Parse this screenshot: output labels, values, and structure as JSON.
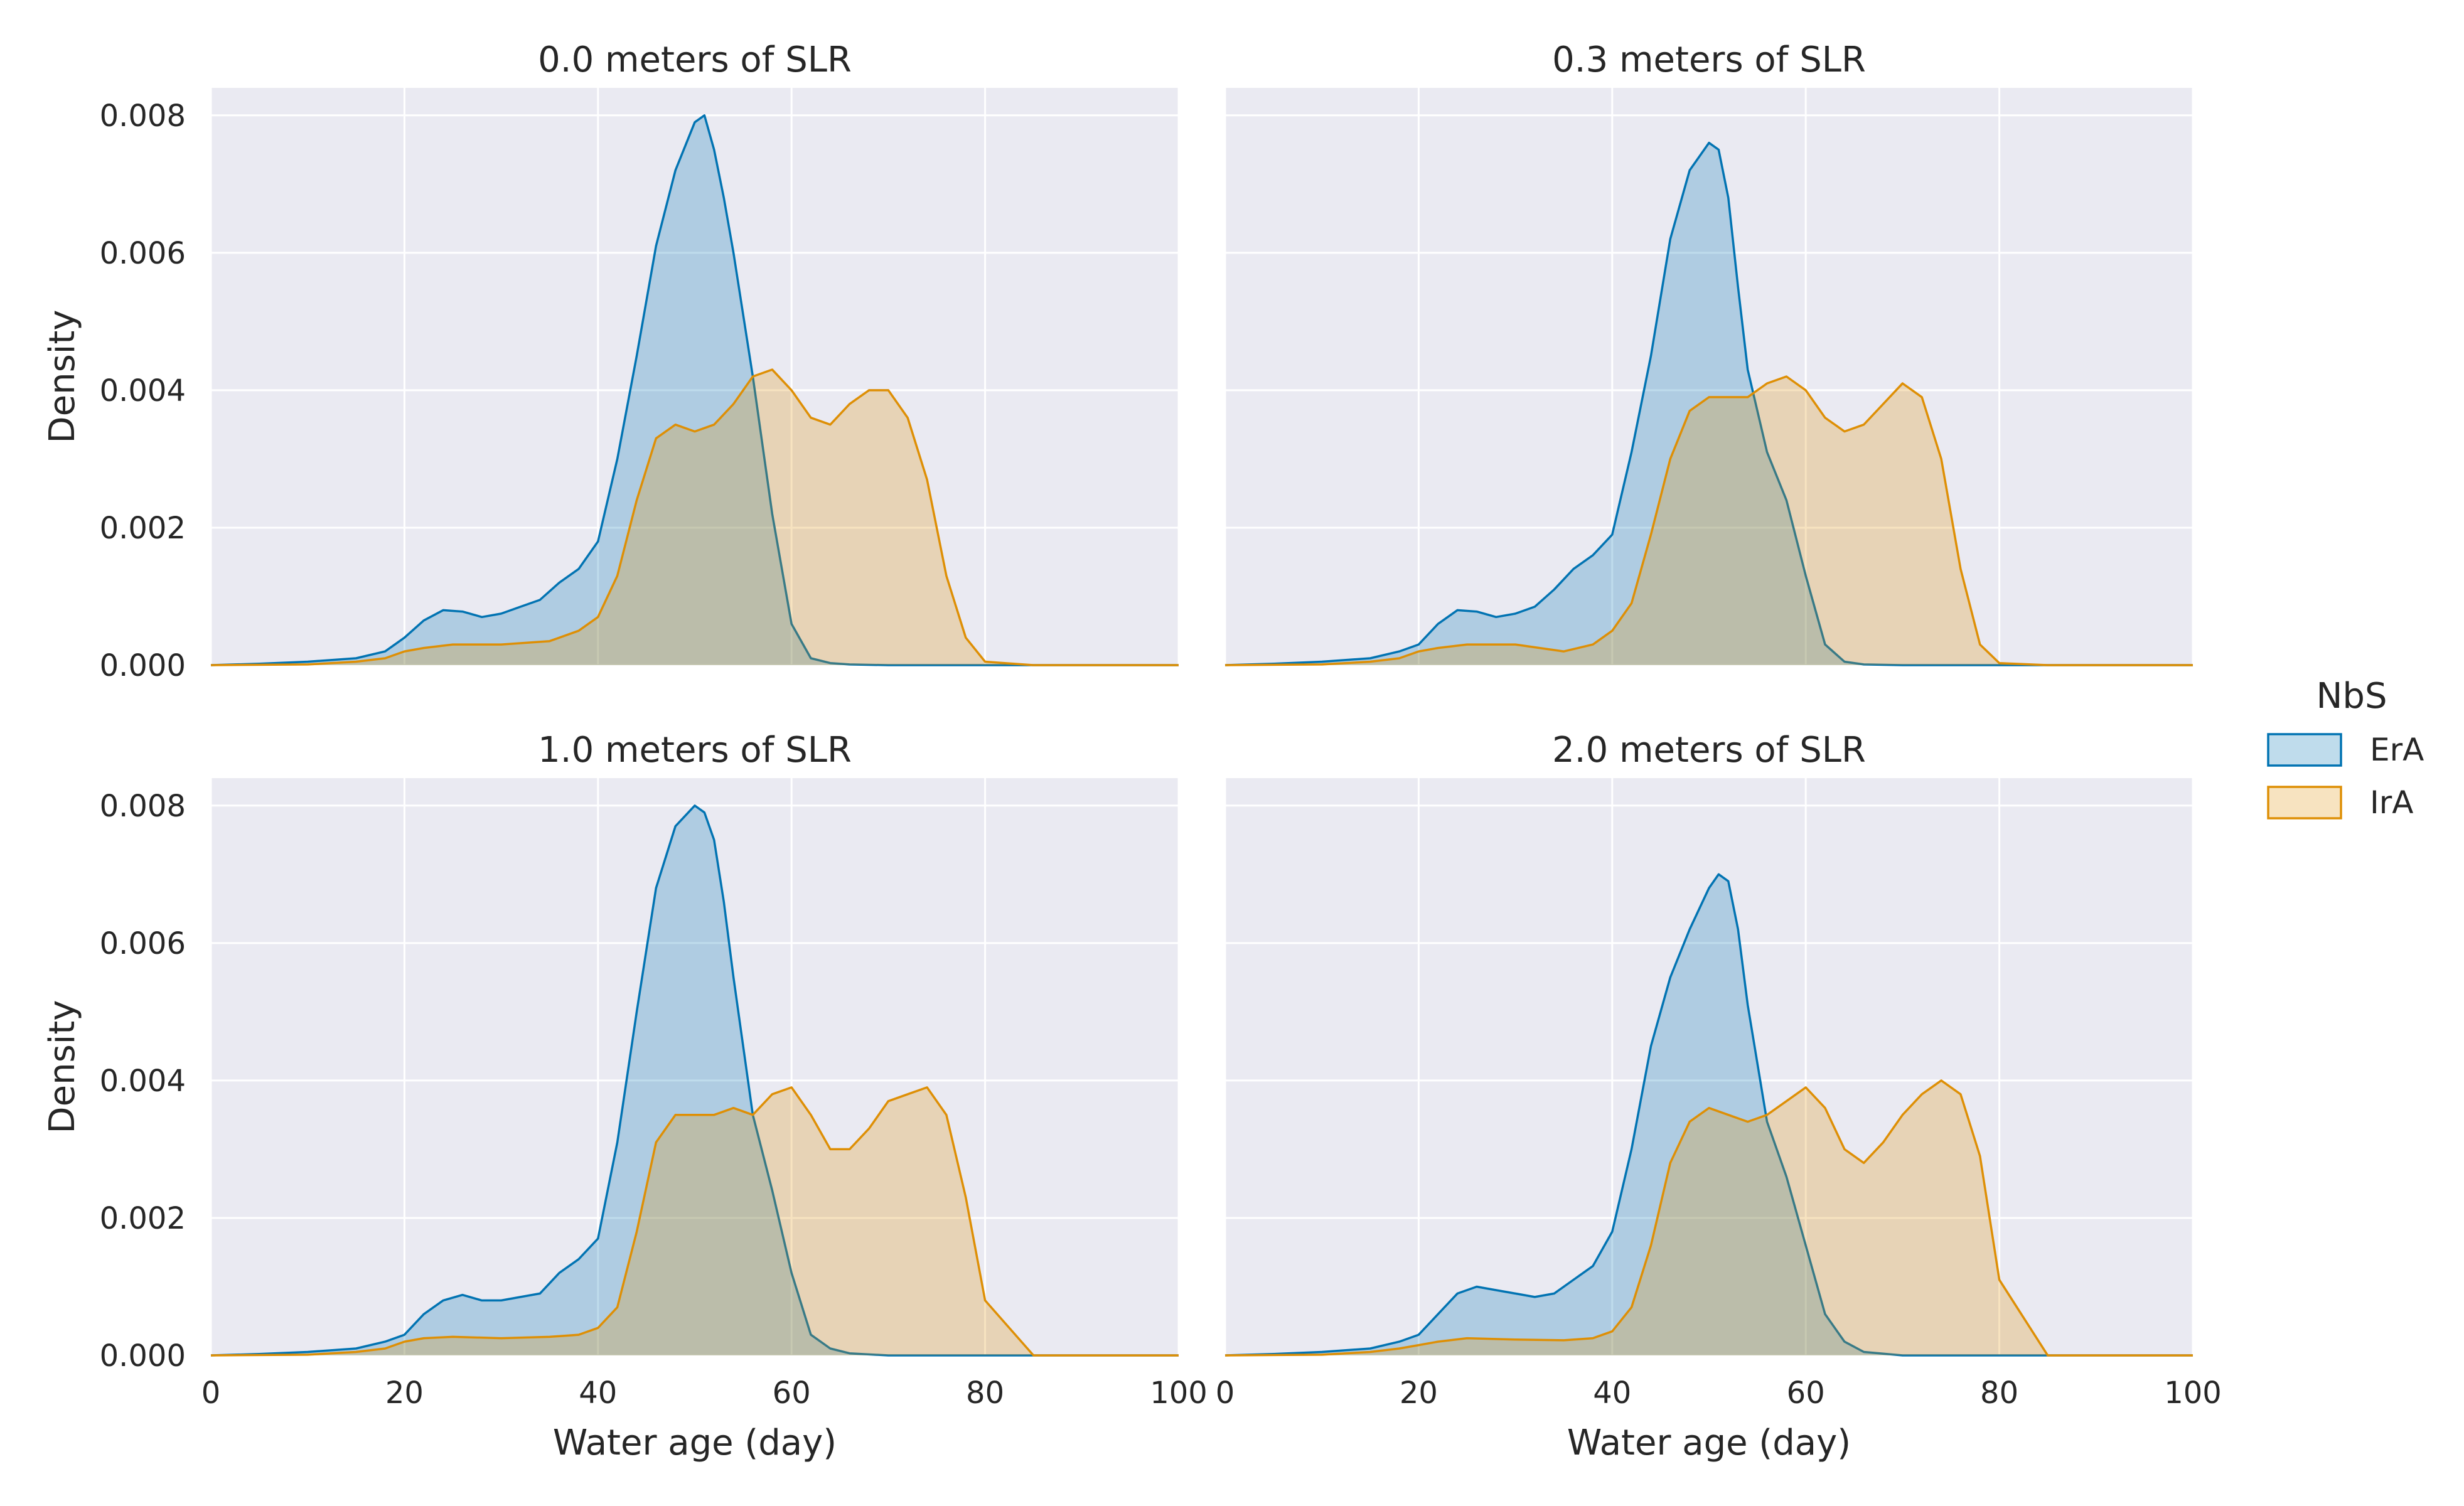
{
  "chart_data": {
    "type": "area",
    "xlabel": "Water age (day)",
    "ylabel": "Density",
    "xlim": [
      0,
      100
    ],
    "ylim": [
      0,
      0.0084
    ],
    "xticks": [
      "0",
      "20",
      "40",
      "60",
      "80",
      "100"
    ],
    "yticks": [
      "0.000",
      "0.002",
      "0.004",
      "0.006",
      "0.008"
    ],
    "grid": true,
    "legend": {
      "title": "NbS",
      "placement": "right",
      "entries": [
        {
          "name": "ErA",
          "color": "#0173b2"
        },
        {
          "name": "IrA",
          "color": "#de8f05"
        }
      ]
    },
    "panels": [
      {
        "title": "0.0 meters of SLR",
        "series": [
          {
            "name": "ErA",
            "x": [
              0,
              5,
              10,
              15,
              18,
              20,
              22,
              24,
              26,
              28,
              30,
              32,
              34,
              36,
              38,
              40,
              42,
              44,
              46,
              48,
              50,
              51,
              52,
              53,
              54,
              56,
              58,
              60,
              62,
              64,
              66,
              70,
              80,
              90,
              100
            ],
            "y": [
              0,
              2e-05,
              5e-05,
              0.0001,
              0.0002,
              0.0004,
              0.00065,
              0.0008,
              0.00078,
              0.0007,
              0.00075,
              0.00085,
              0.00095,
              0.0012,
              0.0014,
              0.0018,
              0.003,
              0.0045,
              0.0061,
              0.0072,
              0.0079,
              0.008,
              0.0075,
              0.0068,
              0.006,
              0.0042,
              0.0022,
              0.0006,
              0.0001,
              3e-05,
              1e-05,
              0,
              0,
              0,
              0
            ]
          },
          {
            "name": "IrA",
            "x": [
              0,
              10,
              15,
              18,
              20,
              22,
              25,
              30,
              35,
              38,
              40,
              42,
              44,
              46,
              48,
              50,
              52,
              54,
              56,
              58,
              60,
              62,
              64,
              66,
              68,
              70,
              72,
              74,
              76,
              78,
              80,
              85,
              90,
              100
            ],
            "y": [
              0,
              1e-05,
              5e-05,
              0.0001,
              0.0002,
              0.00025,
              0.0003,
              0.0003,
              0.00035,
              0.0005,
              0.0007,
              0.0013,
              0.0024,
              0.0033,
              0.0035,
              0.0034,
              0.0035,
              0.0038,
              0.0042,
              0.0043,
              0.004,
              0.0036,
              0.0035,
              0.0038,
              0.004,
              0.004,
              0.0036,
              0.0027,
              0.0013,
              0.0004,
              5e-05,
              0,
              0,
              0
            ]
          }
        ]
      },
      {
        "title": "0.3 meters of SLR",
        "series": [
          {
            "name": "ErA",
            "x": [
              0,
              5,
              10,
              15,
              18,
              20,
              22,
              24,
              26,
              28,
              30,
              32,
              34,
              36,
              38,
              40,
              42,
              44,
              46,
              48,
              50,
              51,
              52,
              53,
              54,
              56,
              58,
              60,
              62,
              64,
              66,
              70,
              80,
              90,
              100
            ],
            "y": [
              0,
              2e-05,
              5e-05,
              0.0001,
              0.0002,
              0.0003,
              0.0006,
              0.0008,
              0.00078,
              0.0007,
              0.00075,
              0.00085,
              0.0011,
              0.0014,
              0.0016,
              0.0019,
              0.0031,
              0.0045,
              0.0062,
              0.0072,
              0.0076,
              0.0075,
              0.0068,
              0.0055,
              0.0043,
              0.0031,
              0.0024,
              0.0013,
              0.0003,
              5e-05,
              1e-05,
              0,
              0,
              0,
              0
            ]
          },
          {
            "name": "IrA",
            "x": [
              0,
              10,
              15,
              18,
              20,
              22,
              25,
              30,
              35,
              38,
              40,
              42,
              44,
              46,
              48,
              50,
              52,
              54,
              56,
              58,
              60,
              62,
              64,
              66,
              68,
              70,
              72,
              74,
              76,
              78,
              80,
              85,
              90,
              100
            ],
            "y": [
              0,
              1e-05,
              5e-05,
              0.0001,
              0.0002,
              0.00025,
              0.0003,
              0.0003,
              0.0002,
              0.0003,
              0.0005,
              0.0009,
              0.0019,
              0.003,
              0.0037,
              0.0039,
              0.0039,
              0.0039,
              0.0041,
              0.0042,
              0.004,
              0.0036,
              0.0034,
              0.0035,
              0.0038,
              0.0041,
              0.0039,
              0.003,
              0.0014,
              0.0003,
              3e-05,
              0,
              0,
              0
            ]
          }
        ]
      },
      {
        "title": "1.0 meters of SLR",
        "series": [
          {
            "name": "ErA",
            "x": [
              0,
              5,
              10,
              15,
              18,
              20,
              22,
              24,
              26,
              28,
              30,
              32,
              34,
              36,
              38,
              40,
              42,
              44,
              46,
              48,
              50,
              51,
              52,
              53,
              54,
              56,
              58,
              60,
              62,
              64,
              66,
              70,
              80,
              90,
              100
            ],
            "y": [
              0,
              2e-05,
              5e-05,
              0.0001,
              0.0002,
              0.0003,
              0.0006,
              0.0008,
              0.00088,
              0.0008,
              0.0008,
              0.00085,
              0.0009,
              0.0012,
              0.0014,
              0.0017,
              0.0031,
              0.005,
              0.0068,
              0.0077,
              0.008,
              0.0079,
              0.0075,
              0.0066,
              0.0055,
              0.0035,
              0.0024,
              0.0012,
              0.0003,
              0.0001,
              3e-05,
              0,
              0,
              0,
              0
            ]
          },
          {
            "name": "IrA",
            "x": [
              0,
              10,
              15,
              18,
              20,
              22,
              25,
              30,
              35,
              38,
              40,
              42,
              44,
              46,
              48,
              50,
              52,
              54,
              56,
              58,
              60,
              62,
              64,
              66,
              68,
              70,
              72,
              74,
              76,
              78,
              80,
              85,
              90,
              100
            ],
            "y": [
              0,
              1e-05,
              5e-05,
              0.0001,
              0.0002,
              0.00025,
              0.00027,
              0.00025,
              0.00027,
              0.0003,
              0.0004,
              0.0007,
              0.0018,
              0.0031,
              0.0035,
              0.0035,
              0.0035,
              0.0036,
              0.0035,
              0.0038,
              0.0039,
              0.0035,
              0.003,
              0.003,
              0.0033,
              0.0037,
              0.0038,
              0.0039,
              0.0035,
              0.0023,
              0.0008,
              0,
              0,
              0
            ]
          }
        ]
      },
      {
        "title": "2.0 meters of SLR",
        "series": [
          {
            "name": "ErA",
            "x": [
              0,
              5,
              10,
              15,
              18,
              20,
              22,
              24,
              26,
              28,
              30,
              32,
              34,
              36,
              38,
              40,
              42,
              44,
              46,
              48,
              50,
              51,
              52,
              53,
              54,
              56,
              58,
              60,
              62,
              64,
              66,
              70,
              80,
              90,
              100
            ],
            "y": [
              0,
              2e-05,
              5e-05,
              0.0001,
              0.0002,
              0.0003,
              0.0006,
              0.0009,
              0.001,
              0.00095,
              0.0009,
              0.00085,
              0.0009,
              0.0011,
              0.0013,
              0.0018,
              0.003,
              0.0045,
              0.0055,
              0.0062,
              0.0068,
              0.007,
              0.0069,
              0.0062,
              0.0051,
              0.0034,
              0.0026,
              0.0016,
              0.0006,
              0.0002,
              5e-05,
              0,
              0,
              0,
              0
            ]
          },
          {
            "name": "IrA",
            "x": [
              0,
              10,
              15,
              18,
              20,
              22,
              25,
              30,
              35,
              38,
              40,
              42,
              44,
              46,
              48,
              50,
              52,
              54,
              56,
              58,
              60,
              62,
              64,
              66,
              68,
              70,
              72,
              74,
              76,
              78,
              80,
              85,
              90,
              100
            ],
            "y": [
              0,
              1e-05,
              5e-05,
              0.0001,
              0.00015,
              0.0002,
              0.00025,
              0.00023,
              0.00022,
              0.00025,
              0.00035,
              0.0007,
              0.0016,
              0.0028,
              0.0034,
              0.0036,
              0.0035,
              0.0034,
              0.0035,
              0.0037,
              0.0039,
              0.0036,
              0.003,
              0.0028,
              0.0031,
              0.0035,
              0.0038,
              0.004,
              0.0038,
              0.0029,
              0.0011,
              0,
              0,
              0
            ]
          }
        ]
      }
    ]
  }
}
